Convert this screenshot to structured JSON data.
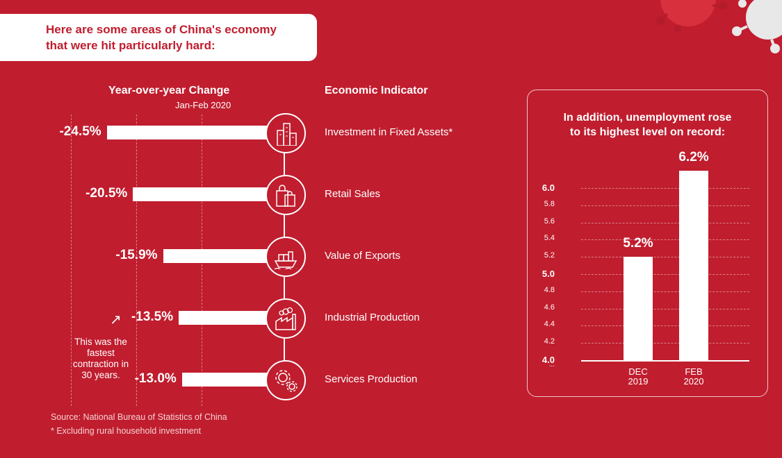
{
  "title": {
    "line1": "Here are some areas of China's economy",
    "line2": "that were hit particularly hard:"
  },
  "colors": {
    "background": "#c01d2e",
    "foreground": "#ffffff"
  },
  "left_chart": {
    "col_header": "Year-over-year Change",
    "col_subheader": "Jan-Feb 2020",
    "indicator_header": "Economic Indicator",
    "note": "This was the fastest contraction in 30 years.",
    "note_arrow": "↗"
  },
  "right_panel": {
    "title_line1": "In addition, unemployment rose",
    "title_line2": "to its highest level on record:",
    "axis_break": "..."
  },
  "footer": {
    "source": "Source: National Bureau of Statistics of China",
    "footnote": "* Excluding rural household investment"
  },
  "chart_data": [
    {
      "type": "bar",
      "orientation": "horizontal",
      "title": "Year-over-year Change, Jan-Feb 2020",
      "categories": [
        "Investment in Fixed Assets*",
        "Retail Sales",
        "Value of Exports",
        "Industrial Production",
        "Services Production"
      ],
      "values": [
        -24.5,
        -20.5,
        -15.9,
        -13.5,
        -13.0
      ],
      "value_labels": [
        "-24.5%",
        "-20.5%",
        "-15.9%",
        "-13.5%",
        "-13.0%"
      ],
      "icons": [
        "buildings-icon",
        "shopping-bags-icon",
        "cargo-ship-icon",
        "factory-icon",
        "gears-icon"
      ],
      "xlim": [
        -30,
        0
      ],
      "grid": "vertical dashed"
    },
    {
      "type": "bar",
      "title": "In addition, unemployment rose to its highest level on record:",
      "categories": [
        "DEC 2019",
        "FEB 2020"
      ],
      "category_lines": [
        [
          "DEC",
          "2019"
        ],
        [
          "FEB",
          "2020"
        ]
      ],
      "values": [
        5.2,
        6.2
      ],
      "value_labels": [
        "5.2%",
        "6.2%"
      ],
      "ylim": [
        4.0,
        6.0
      ],
      "yticks": [
        4.0,
        4.2,
        4.4,
        4.6,
        4.8,
        5.0,
        5.2,
        5.4,
        5.6,
        5.8,
        6.0
      ],
      "ytick_labels": [
        "4.0",
        "4.2",
        "4.4",
        "4.6",
        "4.8",
        "5.0",
        "5.2",
        "5.4",
        "5.6",
        "5.8",
        "6.0"
      ],
      "grid": "horizontal dashed"
    }
  ]
}
